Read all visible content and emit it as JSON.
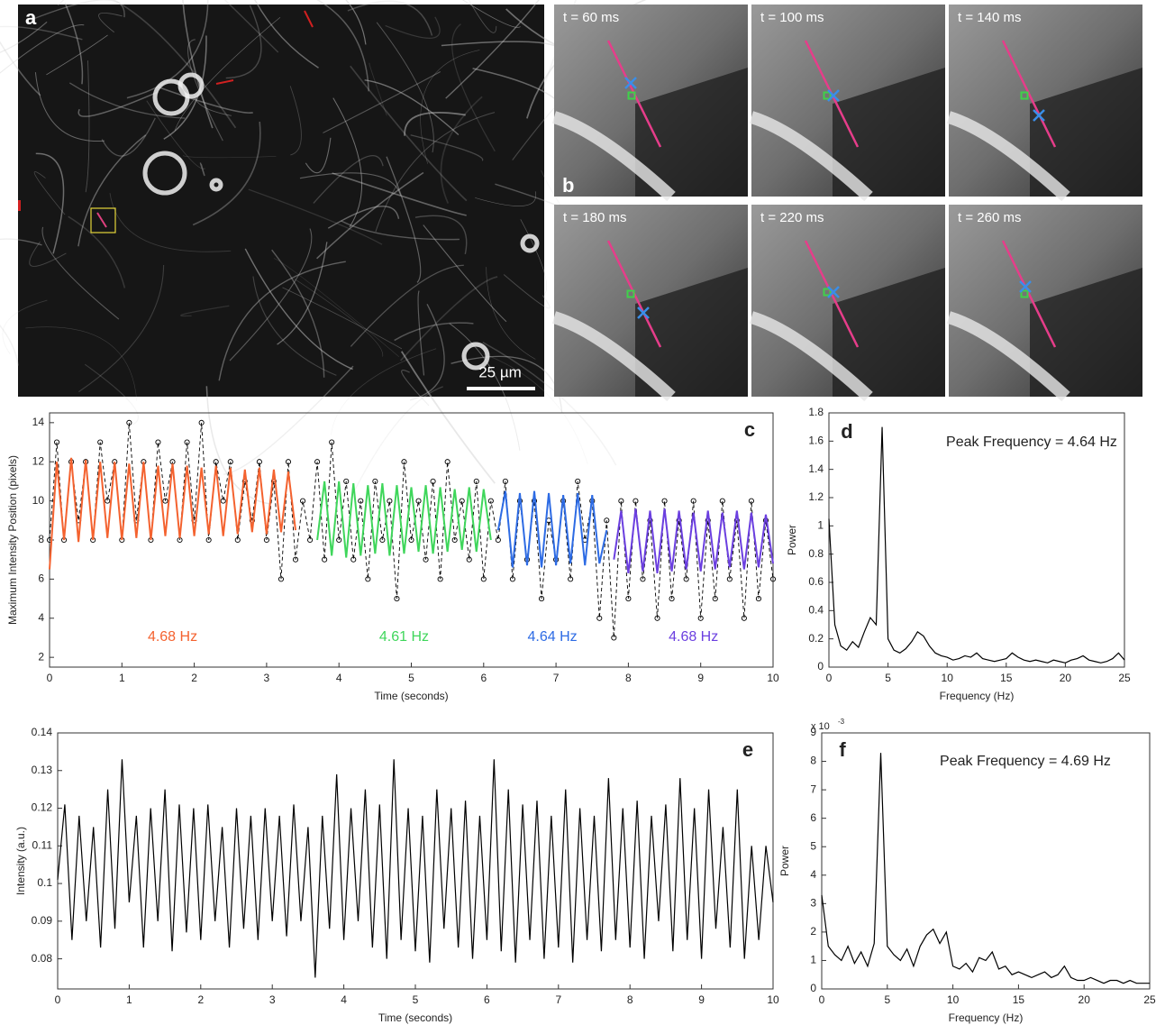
{
  "images": {
    "panel_a": {
      "label": "a",
      "scale_bar": "25 µm"
    },
    "panel_b": {
      "label": "b",
      "frames": [
        "t = 60 ms",
        "t = 100 ms",
        "t = 140 ms",
        "t = 180 ms",
        "t = 220 ms",
        "t = 260 ms"
      ]
    }
  },
  "chart_data": [
    {
      "type": "line",
      "panel_label": "c",
      "x_label": "Time (seconds)",
      "y_label": "Maximum Intensity Position (pixels)",
      "xlim": [
        0,
        10
      ],
      "xticks": [
        0,
        1,
        2,
        3,
        4,
        5,
        6,
        7,
        8,
        9,
        10
      ],
      "ylim": [
        1.5,
        14.5
      ],
      "yticks": [
        2,
        4,
        6,
        8,
        10,
        12,
        14
      ],
      "series": [
        {
          "color": "#000000",
          "line_style": "dashed",
          "marker": "circle",
          "x": [
            0,
            0.1,
            0.2,
            0.3,
            0.4,
            0.5,
            0.6,
            0.7,
            0.8,
            0.9,
            1,
            1.1,
            1.2,
            1.3,
            1.4,
            1.5,
            1.6,
            1.7,
            1.8,
            1.9,
            2,
            2.1,
            2.2,
            2.3,
            2.4,
            2.5,
            2.6,
            2.7,
            2.8,
            2.9,
            3,
            3.1,
            3.2,
            3.3,
            3.4,
            3.5,
            3.6,
            3.7,
            3.8,
            3.9,
            4,
            4.1,
            4.2,
            4.3,
            4.4,
            4.5,
            4.6,
            4.7,
            4.8,
            4.9,
            5,
            5.1,
            5.2,
            5.3,
            5.4,
            5.5,
            5.6,
            5.7,
            5.8,
            5.9,
            6,
            6.1,
            6.2,
            6.3,
            6.4,
            6.5,
            6.6,
            6.7,
            6.8,
            6.9,
            7,
            7.1,
            7.2,
            7.3,
            7.4,
            7.5,
            7.6,
            7.7,
            7.8,
            7.9,
            8,
            8.1,
            8.2,
            8.3,
            8.4,
            8.5,
            8.6,
            8.7,
            8.8,
            8.9,
            9,
            9.1,
            9.2,
            9.3,
            9.4,
            9.5,
            9.6,
            9.7,
            9.8,
            9.9,
            10
          ],
          "values": [
            8,
            13,
            8,
            12,
            9,
            12,
            8,
            13,
            10,
            12,
            8,
            14,
            9,
            12,
            8,
            13,
            10,
            12,
            8,
            13,
            9,
            14,
            8,
            12,
            10,
            12,
            8,
            11,
            9,
            12,
            8,
            11,
            6,
            12,
            7,
            10,
            8,
            12,
            7,
            13,
            8,
            11,
            7,
            10,
            6,
            11,
            8,
            10,
            5,
            12,
            8,
            10,
            7,
            11,
            6,
            12,
            8,
            10,
            7,
            11,
            6,
            10,
            8,
            11,
            6,
            10,
            7,
            10,
            5,
            9,
            7,
            10,
            6,
            11,
            8,
            10,
            4,
            9,
            3,
            10,
            5,
            10,
            6,
            9,
            4,
            10,
            5,
            9,
            6,
            10,
            4,
            9,
            5,
            10,
            6,
            9,
            4,
            10,
            5,
            9,
            6
          ]
        },
        {
          "name": "4.68 Hz",
          "color": "#f4622f",
          "line_style": "solid",
          "x": [
            0,
            0.1,
            0.2,
            0.3,
            0.4,
            0.5,
            0.6,
            0.7,
            0.8,
            0.9,
            1,
            1.1,
            1.2,
            1.3,
            1.4,
            1.5,
            1.6,
            1.7,
            1.8,
            1.9,
            2,
            2.1,
            2.2,
            2.3,
            2.4,
            2.5,
            2.6,
            2.7,
            2.8,
            2.9,
            3,
            3.1,
            3.2,
            3.3,
            3.4
          ],
          "values": [
            6.5,
            12,
            8,
            12.2,
            7.9,
            12.1,
            8,
            12,
            8.1,
            12,
            8,
            11.9,
            8.1,
            12,
            8,
            11.8,
            8.2,
            11.9,
            8.1,
            11.8,
            8.2,
            11.7,
            8.3,
            11.8,
            8.2,
            11.7,
            8.3,
            11.6,
            8.4,
            11.7,
            8.3,
            11.6,
            8.4,
            11.5,
            8.5
          ]
        },
        {
          "name": "4.61 Hz",
          "color": "#3fd65b",
          "line_style": "solid",
          "x": [
            3.7,
            3.8,
            3.9,
            4,
            4.1,
            4.2,
            4.3,
            4.4,
            4.5,
            4.6,
            4.7,
            4.8,
            4.9,
            5,
            5.1,
            5.2,
            5.3,
            5.4,
            5.5,
            5.6,
            5.7,
            5.8,
            5.9,
            6,
            6.1
          ],
          "values": [
            8,
            11,
            7.2,
            11,
            7.1,
            10.9,
            7.2,
            10.8,
            7.3,
            10.9,
            7.2,
            10.8,
            7.3,
            10.7,
            7.4,
            10.8,
            7.3,
            10.7,
            7.4,
            10.6,
            7.5,
            10.7,
            7.4,
            10.6,
            8
          ]
        },
        {
          "name": "4.64 Hz",
          "color": "#2d6be4",
          "line_style": "solid",
          "x": [
            6.2,
            6.3,
            6.4,
            6.5,
            6.6,
            6.7,
            6.8,
            6.9,
            7,
            7.1,
            7.2,
            7.3,
            7.4,
            7.5,
            7.6,
            7.7
          ],
          "values": [
            8.5,
            10.5,
            6.6,
            10.4,
            6.7,
            10.5,
            6.6,
            10.4,
            6.7,
            10.3,
            6.8,
            10.4,
            6.7,
            10.3,
            6.8,
            8.5
          ]
        },
        {
          "name": "4.68 Hz",
          "color": "#6b3fe0",
          "line_style": "solid",
          "x": [
            7.8,
            7.9,
            8,
            8.1,
            8.2,
            8.3,
            8.4,
            8.5,
            8.6,
            8.7,
            8.8,
            8.9,
            9,
            9.1,
            9.2,
            9.3,
            9.4,
            9.5,
            9.6,
            9.7,
            9.8,
            9.9,
            10
          ],
          "values": [
            7,
            9.5,
            6.3,
            9.6,
            6.4,
            9.5,
            6.3,
            9.6,
            6.4,
            9.5,
            6.5,
            9.4,
            6.4,
            9.5,
            6.5,
            9.4,
            6.6,
            9.5,
            6.5,
            9.4,
            6.6,
            9.3,
            6.8
          ]
        }
      ]
    },
    {
      "type": "line",
      "panel_label": "d",
      "annotation": "Peak Frequency = 4.64 Hz",
      "x_label": "Frequency (Hz)",
      "y_label": "Power",
      "xlim": [
        0,
        25
      ],
      "xticks": [
        0,
        5,
        10,
        15,
        20,
        25
      ],
      "ylim": [
        0,
        1.8
      ],
      "yticks": [
        0,
        0.2,
        0.4,
        0.6,
        0.8,
        1,
        1.2,
        1.4,
        1.6,
        1.8
      ],
      "series": [
        {
          "color": "#000000",
          "line_style": "solid",
          "x": [
            0,
            0.5,
            1,
            1.5,
            2,
            2.5,
            3,
            3.5,
            4,
            4.5,
            5,
            5.5,
            6,
            6.5,
            7,
            7.5,
            8,
            8.5,
            9,
            9.5,
            10,
            10.5,
            11,
            11.5,
            12,
            12.5,
            13,
            13.5,
            14,
            14.5,
            15,
            15.5,
            16,
            16.5,
            17,
            17.5,
            18,
            18.5,
            19,
            19.5,
            20,
            20.5,
            21,
            21.5,
            22,
            22.5,
            23,
            23.5,
            24,
            24.5,
            25
          ],
          "values": [
            1.05,
            0.3,
            0.15,
            0.12,
            0.18,
            0.14,
            0.25,
            0.35,
            0.3,
            1.7,
            0.2,
            0.12,
            0.1,
            0.13,
            0.18,
            0.25,
            0.22,
            0.15,
            0.1,
            0.08,
            0.07,
            0.05,
            0.06,
            0.08,
            0.07,
            0.1,
            0.06,
            0.05,
            0.04,
            0.05,
            0.06,
            0.1,
            0.07,
            0.05,
            0.04,
            0.05,
            0.04,
            0.03,
            0.05,
            0.04,
            0.03,
            0.05,
            0.06,
            0.08,
            0.05,
            0.04,
            0.03,
            0.04,
            0.06,
            0.1,
            0.05
          ]
        }
      ]
    },
    {
      "type": "line",
      "panel_label": "e",
      "x_label": "Time (seconds)",
      "y_label": "Intensity (a.u.)",
      "xlim": [
        0,
        10
      ],
      "xticks": [
        0,
        1,
        2,
        3,
        4,
        5,
        6,
        7,
        8,
        9,
        10
      ],
      "ylim": [
        0.072,
        0.14
      ],
      "yticks": [
        0.08,
        0.09,
        0.1,
        0.11,
        0.12,
        0.13,
        0.14
      ],
      "series": [
        {
          "color": "#000000",
          "line_style": "solid",
          "x": [
            0,
            0.1,
            0.2,
            0.3,
            0.4,
            0.5,
            0.6,
            0.7,
            0.8,
            0.9,
            1,
            1.1,
            1.2,
            1.3,
            1.4,
            1.5,
            1.6,
            1.7,
            1.8,
            1.9,
            2,
            2.1,
            2.2,
            2.3,
            2.4,
            2.5,
            2.6,
            2.7,
            2.8,
            2.9,
            3,
            3.1,
            3.2,
            3.3,
            3.4,
            3.5,
            3.6,
            3.7,
            3.8,
            3.9,
            4,
            4.1,
            4.2,
            4.3,
            4.4,
            4.5,
            4.6,
            4.7,
            4.8,
            4.9,
            5,
            5.1,
            5.2,
            5.3,
            5.4,
            5.5,
            5.6,
            5.7,
            5.8,
            5.9,
            6,
            6.1,
            6.2,
            6.3,
            6.4,
            6.5,
            6.6,
            6.7,
            6.8,
            6.9,
            7,
            7.1,
            7.2,
            7.3,
            7.4,
            7.5,
            7.6,
            7.7,
            7.8,
            7.9,
            8,
            8.1,
            8.2,
            8.3,
            8.4,
            8.5,
            8.6,
            8.7,
            8.8,
            8.9,
            9,
            9.1,
            9.2,
            9.3,
            9.4,
            9.5,
            9.6,
            9.7,
            9.8,
            9.9,
            10
          ],
          "values": [
            0.101,
            0.121,
            0.085,
            0.118,
            0.09,
            0.115,
            0.083,
            0.125,
            0.088,
            0.133,
            0.095,
            0.118,
            0.083,
            0.12,
            0.09,
            0.125,
            0.082,
            0.121,
            0.087,
            0.12,
            0.085,
            0.121,
            0.09,
            0.115,
            0.083,
            0.12,
            0.088,
            0.118,
            0.085,
            0.12,
            0.09,
            0.118,
            0.086,
            0.121,
            0.09,
            0.115,
            0.075,
            0.118,
            0.088,
            0.129,
            0.085,
            0.12,
            0.09,
            0.125,
            0.083,
            0.121,
            0.08,
            0.133,
            0.085,
            0.12,
            0.082,
            0.118,
            0.079,
            0.125,
            0.088,
            0.12,
            0.083,
            0.122,
            0.08,
            0.118,
            0.085,
            0.133,
            0.082,
            0.125,
            0.079,
            0.121,
            0.085,
            0.122,
            0.08,
            0.118,
            0.083,
            0.125,
            0.079,
            0.12,
            0.085,
            0.118,
            0.082,
            0.128,
            0.085,
            0.12,
            0.083,
            0.122,
            0.08,
            0.118,
            0.09,
            0.121,
            0.082,
            0.128,
            0.085,
            0.12,
            0.08,
            0.125,
            0.088,
            0.115,
            0.083,
            0.125,
            0.08,
            0.11,
            0.085,
            0.11,
            0.095
          ]
        }
      ]
    },
    {
      "type": "line",
      "panel_label": "f",
      "annotation": "Peak Frequency = 4.69 Hz",
      "x_label": "Frequency (Hz)",
      "y_label": "Power",
      "y_multiplier": "x 10",
      "y_multiplier_exp": "-3",
      "xlim": [
        0,
        25
      ],
      "xticks": [
        0,
        5,
        10,
        15,
        20,
        25
      ],
      "ylim": [
        0,
        9
      ],
      "yticks": [
        0,
        1,
        2,
        3,
        4,
        5,
        6,
        7,
        8,
        9
      ],
      "series": [
        {
          "color": "#000000",
          "line_style": "solid",
          "x": [
            0,
            0.5,
            1,
            1.5,
            2,
            2.5,
            3,
            3.5,
            4,
            4.5,
            5,
            5.5,
            6,
            6.5,
            7,
            7.5,
            8,
            8.5,
            9,
            9.5,
            10,
            10.5,
            11,
            11.5,
            12,
            12.5,
            13,
            13.5,
            14,
            14.5,
            15,
            15.5,
            16,
            16.5,
            17,
            17.5,
            18,
            18.5,
            19,
            19.5,
            20,
            20.5,
            21,
            21.5,
            22,
            22.5,
            23,
            23.5,
            24,
            24.5,
            25
          ],
          "values": [
            3.3,
            1.5,
            1.2,
            1.0,
            1.5,
            0.9,
            1.3,
            0.8,
            1.6,
            8.3,
            1.5,
            1.2,
            1.0,
            1.4,
            0.8,
            1.5,
            1.9,
            2.1,
            1.6,
            2.0,
            0.8,
            0.7,
            0.9,
            0.6,
            1.1,
            1.0,
            1.3,
            0.7,
            0.8,
            0.5,
            0.6,
            0.5,
            0.4,
            0.5,
            0.6,
            0.4,
            0.5,
            0.8,
            0.4,
            0.3,
            0.3,
            0.4,
            0.3,
            0.2,
            0.3,
            0.3,
            0.2,
            0.3,
            0.2,
            0.2,
            0.2
          ]
        }
      ]
    }
  ]
}
